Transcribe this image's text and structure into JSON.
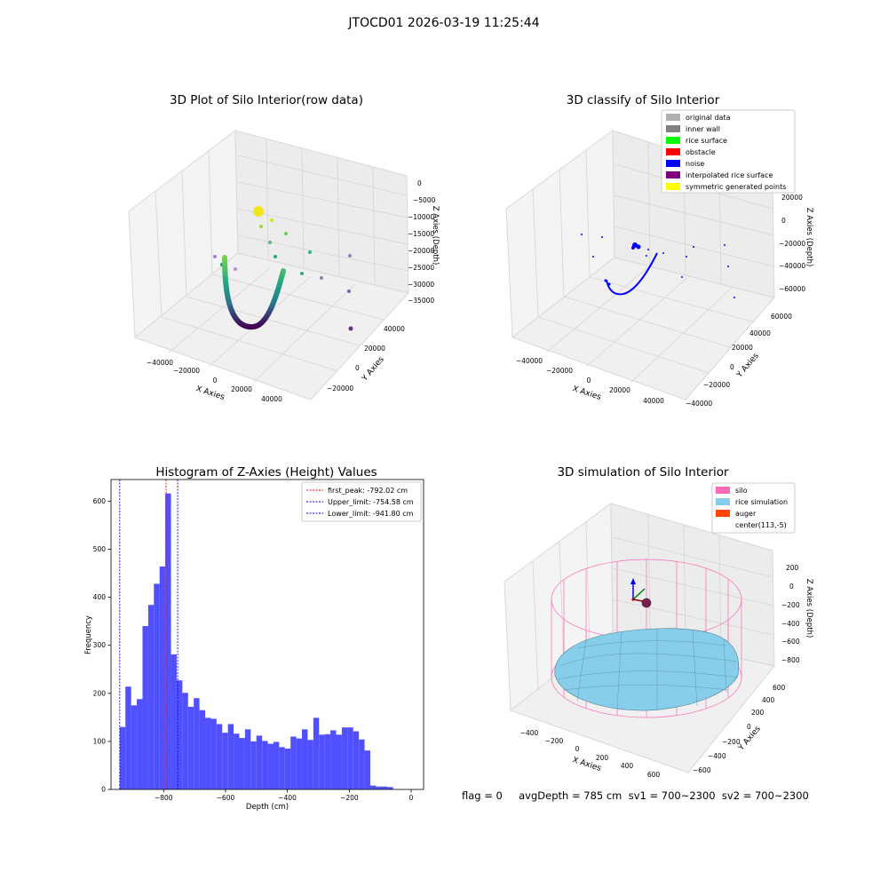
{
  "figure": {
    "title": "JTOCD01 2026-03-19 11:25:44",
    "footer": "flag = 0     avgDepth = 785 cm  sv1 = 700~2300  sv2 = 700~2300"
  },
  "colors": {
    "hist_bar": "#5050ff",
    "first_peak_line": "#ff0000",
    "limit_line": "#0000ff",
    "noise": "#0000ff",
    "silo": "#ff69b4",
    "rice": "#87ceeb",
    "auger": "#ff4500"
  },
  "chart_data": [
    {
      "type": "scatter",
      "subtype": "3d",
      "title": "3D Plot of Silo Interior(row data)",
      "xlabel": "X Axies",
      "ylabel": "Y Axies",
      "zlabel": "Z Axies (Depth)",
      "x_ticks": [
        "−40000",
        "−20000",
        "0",
        "20000",
        "40000"
      ],
      "y_ticks": [
        "−20000",
        "0",
        "20000",
        "40000"
      ],
      "z_ticks": [
        "0",
        "−5000",
        "−10000",
        "−15000",
        "−20000",
        "−25000",
        "−30000",
        "−35000"
      ],
      "colormap": "viridis"
    },
    {
      "type": "scatter",
      "subtype": "3d",
      "title": "3D classify of Silo Interior",
      "xlabel": "X Axies",
      "ylabel": "Y Axies",
      "zlabel": "Z Axies (Depth)",
      "x_ticks": [
        "−40000",
        "−20000",
        "0",
        "20000",
        "40000"
      ],
      "y_ticks": [
        "−40000",
        "−20000",
        "0",
        "20000",
        "40000",
        "60000"
      ],
      "z_ticks": [
        "20000",
        "0",
        "−20000",
        "−40000",
        "−60000"
      ],
      "legend_position": "top-right",
      "legend": [
        {
          "label": "original data",
          "color": "#b0b0b0"
        },
        {
          "label": "inner wall",
          "color": "#808080"
        },
        {
          "label": "rice surface",
          "color": "#00ff00"
        },
        {
          "label": "obstacle",
          "color": "#ff0000"
        },
        {
          "label": "noise",
          "color": "#0000ff"
        },
        {
          "label": "interpolated rice surface",
          "color": "#800080"
        },
        {
          "label": "symmetric generated points",
          "color": "#ffff00"
        }
      ]
    },
    {
      "type": "bar",
      "subtype": "histogram",
      "title": "Histogram of Z-Axies (Height) Values",
      "xlabel": "Depth (cm)",
      "ylabel": "Frequency",
      "xlim": [
        -970,
        40
      ],
      "ylim": [
        0,
        645
      ],
      "bin_start": -941.8,
      "bin_width": 18.4,
      "values": [
        130,
        214,
        175,
        188,
        340,
        384,
        428,
        464,
        616,
        281,
        227,
        201,
        172,
        190,
        165,
        149,
        147,
        136,
        118,
        136,
        116,
        107,
        125,
        100,
        112,
        101,
        95,
        99,
        88,
        85,
        110,
        106,
        125,
        103,
        149,
        114,
        115,
        123,
        114,
        129,
        129,
        121,
        104,
        81,
        8,
        6,
        6,
        5
      ],
      "x_ticks": [
        -800,
        -600,
        -400,
        -200,
        0
      ],
      "y_ticks": [
        0,
        100,
        200,
        300,
        400,
        500,
        600
      ],
      "x_tick_labels": [
        "−800",
        "−600",
        "−400",
        "−200",
        "0"
      ],
      "y_tick_labels": [
        "0",
        "100",
        "200",
        "300",
        "400",
        "500",
        "600"
      ],
      "vlines": [
        {
          "x": -792.02,
          "color": "#ff0000",
          "label": "first_peak: -792.02 cm"
        },
        {
          "x": -754.58,
          "color": "#0000ff",
          "label": "Upper_limit: -754.58 cm"
        },
        {
          "x": -941.8,
          "color": "#0000ff",
          "label": "Lower_limit: -941.80 cm"
        }
      ],
      "legend_position": "top-right"
    },
    {
      "type": "surface",
      "subtype": "3d",
      "title": "3D simulation of Silo Interior",
      "xlabel": "X Axies",
      "ylabel": "Y Axies",
      "zlabel": "Z Axies (Depth)",
      "x_ticks": [
        "−400",
        "−200",
        "0",
        "200",
        "400",
        "600"
      ],
      "y_ticks": [
        "−600",
        "−400",
        "−200",
        "0",
        "200",
        "400",
        "600"
      ],
      "z_ticks": [
        "200",
        "0",
        "−200",
        "−400",
        "−600",
        "−800"
      ],
      "legend_position": "top-right",
      "legend": [
        {
          "label": "silo",
          "color": "#ff69b4"
        },
        {
          "label": "rice simulation",
          "color": "#87ceeb"
        },
        {
          "label": "auger",
          "color": "#ff4500"
        },
        {
          "label": "center(113,-5)",
          "color": "#ffffff"
        }
      ]
    }
  ]
}
